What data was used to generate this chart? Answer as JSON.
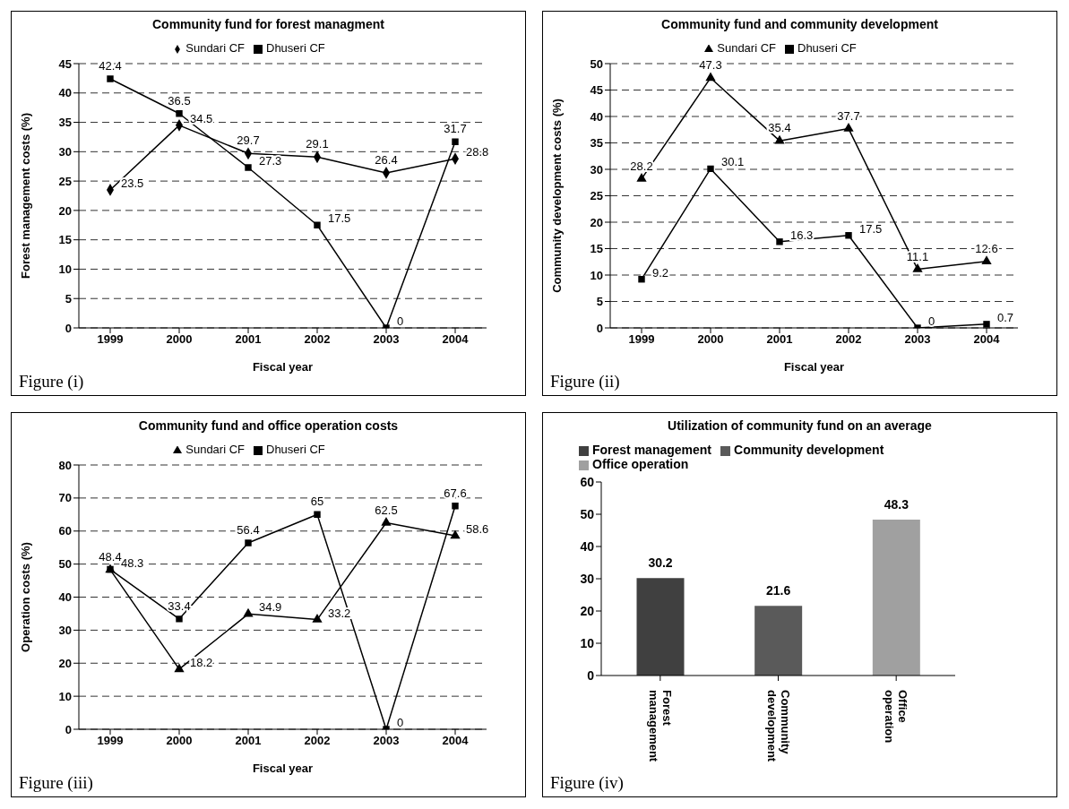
{
  "chart_data": [
    {
      "type": "line",
      "title": "Community fund for forest managment",
      "xlabel": "Fiscal year",
      "ylabel": "Forest management costs (%)",
      "categories": [
        "1999",
        "2000",
        "2001",
        "2002",
        "2003",
        "2004"
      ],
      "series": [
        {
          "name": "Sundari CF",
          "color": "#000000",
          "marker": "diamond",
          "values": [
            23.5,
            34.5,
            29.7,
            29.1,
            26.4,
            28.8
          ]
        },
        {
          "name": "Dhuseri CF",
          "color": "#000000",
          "marker": "square",
          "values": [
            42.4,
            36.5,
            27.3,
            17.5,
            0,
            31.7
          ]
        }
      ],
      "ylim": [
        0,
        45
      ],
      "yticks": [
        0,
        5,
        10,
        15,
        20,
        25,
        30,
        35,
        40,
        45
      ],
      "grid": "y",
      "legend": "top",
      "data_labels": true,
      "line_style": "solid",
      "annotations": [
        "Figure (i)"
      ]
    },
    {
      "type": "line",
      "title": "Community fund and community development",
      "xlabel": "Fiscal year",
      "ylabel": "Community development costs (%)",
      "categories": [
        "1999",
        "2000",
        "2001",
        "2002",
        "2003",
        "2004"
      ],
      "series": [
        {
          "name": "Sundari CF",
          "color": "#000000",
          "marker": "triangle",
          "values": [
            28.2,
            47.3,
            35.4,
            37.7,
            11.1,
            12.6
          ]
        },
        {
          "name": "Dhuseri CF",
          "color": "#000000",
          "marker": "square",
          "values": [
            9.2,
            30.1,
            16.3,
            17.5,
            0,
            0.7
          ]
        }
      ],
      "ylim": [
        0,
        50
      ],
      "yticks": [
        0,
        5,
        10,
        15,
        20,
        25,
        30,
        35,
        40,
        45,
        50
      ],
      "grid": "y",
      "legend": "top",
      "data_labels": true,
      "line_style": "solid",
      "annotations": [
        "Figure (ii)"
      ]
    },
    {
      "type": "line",
      "title": "Community fund and office operation costs",
      "xlabel": "Fiscal year",
      "ylabel": "Operation costs (%)",
      "categories": [
        "1999",
        "2000",
        "2001",
        "2002",
        "2003",
        "2004"
      ],
      "series": [
        {
          "name": "Sundari CF",
          "color": "#000000",
          "marker": "triangle",
          "values": [
            48.3,
            18.2,
            34.9,
            33.2,
            62.5,
            58.6
          ]
        },
        {
          "name": "Dhuseri CF",
          "color": "#000000",
          "marker": "square",
          "values": [
            48.4,
            33.4,
            56.4,
            65,
            0,
            67.6
          ]
        }
      ],
      "ylim": [
        0,
        80
      ],
      "yticks": [
        0,
        10,
        20,
        30,
        40,
        50,
        60,
        70,
        80
      ],
      "grid": "y",
      "legend": "top",
      "data_labels": true,
      "line_style": "solid",
      "annotations": [
        "Figure (iii)"
      ]
    },
    {
      "type": "bar",
      "title": "Utilization of community fund on an average",
      "categories": [
        "Forest management",
        "Community development",
        "Office operation"
      ],
      "stacked": true,
      "series": [
        {
          "name": "Forest management",
          "color": "#404040",
          "values": [
            30.2,
            null,
            null
          ]
        },
        {
          "name": "Community development",
          "color": "#5a5a5a",
          "values": [
            null,
            21.6,
            null
          ]
        },
        {
          "name": "Office operation",
          "color": "#a0a0a0",
          "values": [
            null,
            null,
            48.3
          ]
        }
      ],
      "ylim": [
        0,
        60
      ],
      "yticks": [
        0,
        10,
        20,
        30,
        40,
        50,
        60
      ],
      "grid": false,
      "legend": "top left",
      "data_labels": true,
      "annotations": [
        "Figure (iv)"
      ]
    }
  ]
}
